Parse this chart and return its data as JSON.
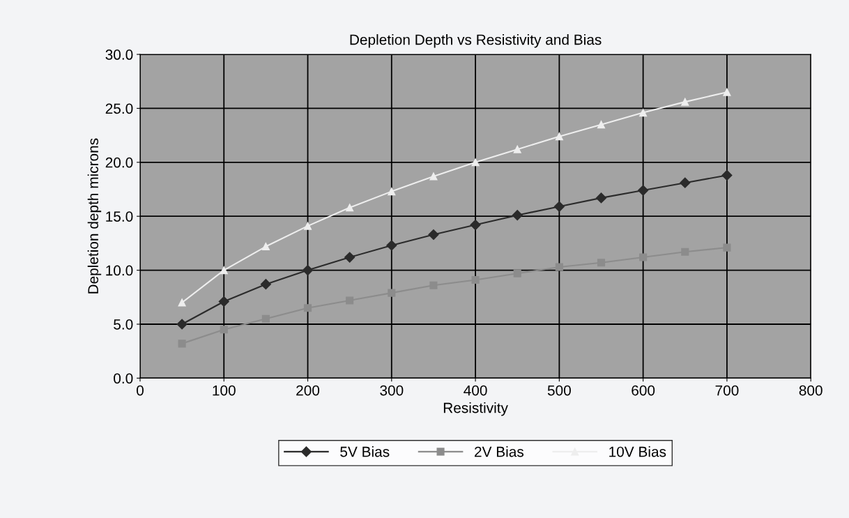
{
  "chart_data": {
    "type": "line",
    "title": "Depletion Depth vs Resistivity and Bias",
    "xlabel": "Resistivity",
    "ylabel": "Depletion depth microns",
    "x": [
      50,
      100,
      150,
      200,
      250,
      300,
      350,
      400,
      450,
      500,
      550,
      600,
      650,
      700
    ],
    "series": [
      {
        "name": "5V Bias",
        "color": "#2b2b2b",
        "marker": "diamond",
        "values": [
          5.0,
          7.1,
          8.7,
          10.0,
          11.2,
          12.3,
          13.3,
          14.2,
          15.1,
          15.9,
          16.7,
          17.4,
          18.1,
          18.8
        ]
      },
      {
        "name": "2V Bias",
        "color": "#8c8c8c",
        "marker": "square",
        "values": [
          3.2,
          4.5,
          5.5,
          6.5,
          7.2,
          7.9,
          8.6,
          9.1,
          9.7,
          10.3,
          10.7,
          11.2,
          11.7,
          12.1
        ]
      },
      {
        "name": "10V Bias",
        "color": "#eeeeee",
        "marker": "triangle",
        "values": [
          7.0,
          10.0,
          12.2,
          14.1,
          15.8,
          17.3,
          18.7,
          20.0,
          21.2,
          22.4,
          23.5,
          24.6,
          25.6,
          26.5
        ]
      }
    ],
    "xlim": [
      0,
      800
    ],
    "xticks": [
      0,
      100,
      200,
      300,
      400,
      500,
      600,
      700,
      800
    ],
    "ylim": [
      0,
      30
    ],
    "yticks": [
      {
        "value": 0,
        "label": "0.0"
      },
      {
        "value": 5,
        "label": "5.0"
      },
      {
        "value": 10,
        "label": "10.0"
      },
      {
        "value": 15,
        "label": "15.0"
      },
      {
        "value": 20,
        "label": "20.0"
      },
      {
        "value": 25,
        "label": "25.0"
      },
      {
        "value": 30,
        "label": "30.0"
      }
    ],
    "grid": true,
    "legend": "bottom",
    "line_style": "solid"
  }
}
